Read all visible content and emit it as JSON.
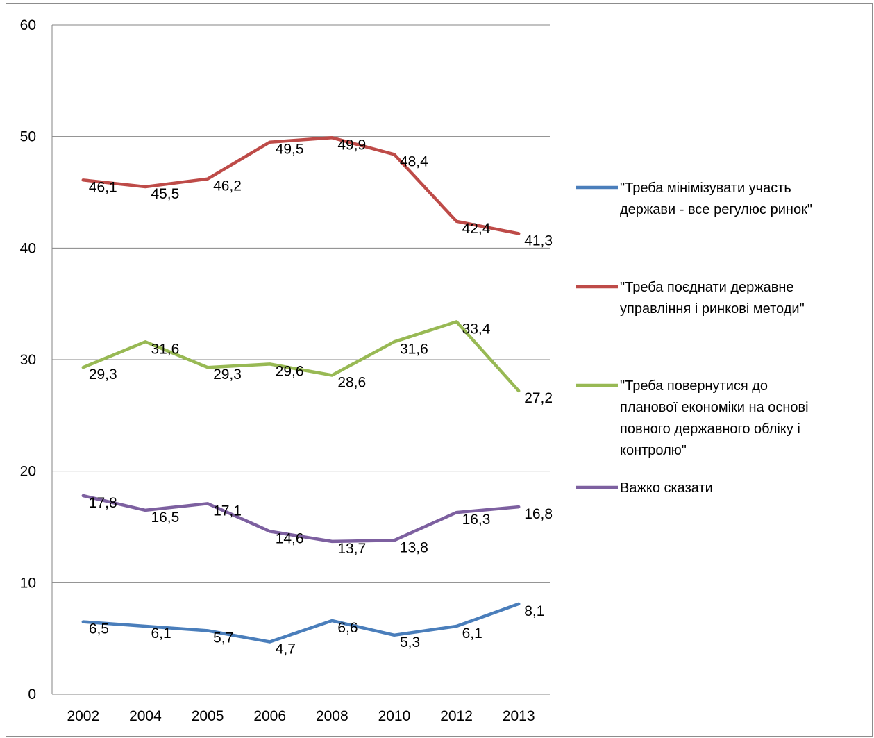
{
  "chart_data": {
    "type": "line",
    "categories": [
      "2002",
      "2004",
      "2005",
      "2006",
      "2008",
      "2010",
      "2012",
      "2013"
    ],
    "ylim": [
      0,
      60
    ],
    "yticks": [
      0,
      10,
      20,
      30,
      40,
      50,
      60
    ],
    "grid": true,
    "legend_position": "right",
    "series": [
      {
        "name": "\"Треба мінімізувати участь держави - все регулює ринок\"",
        "legend_lines": [
          "\"Треба мінімізувати участь",
          "держави - все регулює ринок\""
        ],
        "color": "#4a7ebb",
        "values": [
          6.5,
          6.1,
          5.7,
          4.7,
          6.6,
          5.3,
          6.1,
          8.1
        ],
        "labels": [
          "6,5",
          "6,1",
          "5,7",
          "4,7",
          "6,6",
          "5,3",
          "6,1",
          "8,1"
        ]
      },
      {
        "name": "\"Треба поєднати державне управління і ринкові методи\"",
        "legend_lines": [
          "\"Треба поєднати державне",
          "управління і ринкові методи\""
        ],
        "color": "#be4b48",
        "values": [
          46.1,
          45.5,
          46.2,
          49.5,
          49.9,
          48.4,
          42.4,
          41.3
        ],
        "labels": [
          "46,1",
          "45,5",
          "46,2",
          "49,5",
          "49,9",
          "48,4",
          "42,4",
          "41,3"
        ]
      },
      {
        "name": "\"Треба повернутися до планової економіки на основі повного державного обліку і контролю\"",
        "legend_lines": [
          "\"Треба повернутися до",
          "планової економіки на основі",
          "повного державного обліку і",
          "контролю\""
        ],
        "color": "#98b954",
        "values": [
          29.3,
          31.6,
          29.3,
          29.6,
          28.6,
          31.6,
          33.4,
          27.2
        ],
        "labels": [
          "29,3",
          "31,6",
          "29,3",
          "29,6",
          "28,6",
          "31,6",
          "33,4",
          "27,2"
        ]
      },
      {
        "name": "Важко сказати",
        "legend_lines": [
          "Важко сказати"
        ],
        "color": "#7d60a0",
        "values": [
          17.8,
          16.5,
          17.1,
          14.6,
          13.7,
          13.8,
          16.3,
          16.8
        ],
        "labels": [
          "17,8",
          "16,5",
          "17,1",
          "14,6",
          "13,7",
          "13,8",
          "16,3",
          "16,8"
        ]
      }
    ]
  }
}
